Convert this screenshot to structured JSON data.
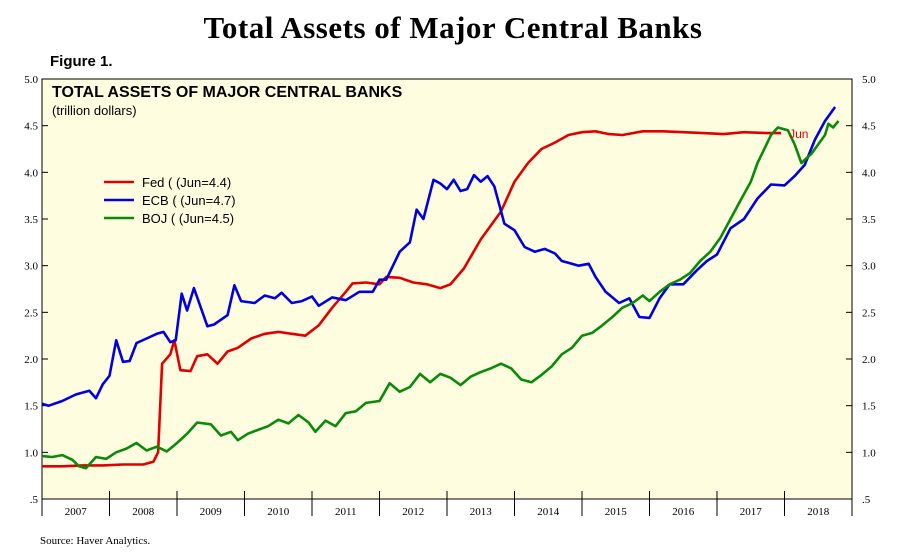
{
  "header": {
    "title": "Total Assets of Major Central Banks",
    "figure_label": "Figure 1.",
    "source": "Source: Haver Analytics."
  },
  "chart_data": {
    "type": "line",
    "title": "TOTAL ASSETS OF MAJOR CENTRAL BANKS",
    "subtitle": "(trillion dollars)",
    "xlabel": "",
    "ylabel": "",
    "xlim": [
      2007,
      2019
    ],
    "ylim": [
      0.5,
      5.0
    ],
    "yticks": [
      0.5,
      1.0,
      1.5,
      2.0,
      2.5,
      3.0,
      3.5,
      4.0,
      4.5,
      5.0
    ],
    "ytick_labels": [
      ".5",
      "1.0",
      "1.5",
      "2.0",
      "2.5",
      "3.0",
      "3.5",
      "4.0",
      "4.5",
      "5.0"
    ],
    "xtick_labels": [
      "2007",
      "2008",
      "2009",
      "2010",
      "2011",
      "2012",
      "2013",
      "2014",
      "2015",
      "2016",
      "2017",
      "2018"
    ],
    "background_color": "#fffde0",
    "grid": false,
    "legend_position": "upper-left",
    "annotation": {
      "text": "Jun",
      "color": "#dd0000"
    },
    "series": [
      {
        "name": "Fed ( (Jun=4.4)",
        "color": "#e00000",
        "points": [
          [
            2007.0,
            0.85
          ],
          [
            2007.3,
            0.85
          ],
          [
            2007.6,
            0.86
          ],
          [
            2007.9,
            0.86
          ],
          [
            2008.2,
            0.87
          ],
          [
            2008.5,
            0.87
          ],
          [
            2008.65,
            0.9
          ],
          [
            2008.72,
            1.0
          ],
          [
            2008.78,
            1.95
          ],
          [
            2008.9,
            2.05
          ],
          [
            2008.96,
            2.2
          ],
          [
            2009.05,
            1.88
          ],
          [
            2009.2,
            1.87
          ],
          [
            2009.3,
            2.03
          ],
          [
            2009.45,
            2.05
          ],
          [
            2009.6,
            1.95
          ],
          [
            2009.75,
            2.08
          ],
          [
            2009.9,
            2.12
          ],
          [
            2010.1,
            2.22
          ],
          [
            2010.3,
            2.27
          ],
          [
            2010.5,
            2.29
          ],
          [
            2010.7,
            2.27
          ],
          [
            2010.9,
            2.25
          ],
          [
            2011.1,
            2.36
          ],
          [
            2011.3,
            2.55
          ],
          [
            2011.5,
            2.72
          ],
          [
            2011.6,
            2.81
          ],
          [
            2011.8,
            2.82
          ],
          [
            2012.0,
            2.8
          ],
          [
            2012.1,
            2.88
          ],
          [
            2012.3,
            2.87
          ],
          [
            2012.5,
            2.82
          ],
          [
            2012.7,
            2.8
          ],
          [
            2012.9,
            2.76
          ],
          [
            2013.05,
            2.8
          ],
          [
            2013.25,
            2.97
          ],
          [
            2013.5,
            3.28
          ],
          [
            2013.8,
            3.58
          ],
          [
            2014.0,
            3.9
          ],
          [
            2014.2,
            4.1
          ],
          [
            2014.4,
            4.25
          ],
          [
            2014.6,
            4.32
          ],
          [
            2014.8,
            4.4
          ],
          [
            2015.0,
            4.43
          ],
          [
            2015.2,
            4.44
          ],
          [
            2015.4,
            4.41
          ],
          [
            2015.6,
            4.4
          ],
          [
            2015.9,
            4.44
          ],
          [
            2016.2,
            4.44
          ],
          [
            2016.5,
            4.43
          ],
          [
            2016.8,
            4.42
          ],
          [
            2017.1,
            4.41
          ],
          [
            2017.4,
            4.43
          ],
          [
            2017.75,
            4.42
          ],
          [
            2017.95,
            4.42
          ]
        ]
      },
      {
        "name": "ECB ( (Jun=4.7)",
        "color": "#0000e0",
        "points": [
          [
            2007.0,
            1.52
          ],
          [
            2007.1,
            1.5
          ],
          [
            2007.3,
            1.55
          ],
          [
            2007.5,
            1.62
          ],
          [
            2007.7,
            1.66
          ],
          [
            2007.8,
            1.58
          ],
          [
            2007.9,
            1.73
          ],
          [
            2008.0,
            1.82
          ],
          [
            2008.1,
            2.2
          ],
          [
            2008.2,
            1.97
          ],
          [
            2008.3,
            1.98
          ],
          [
            2008.4,
            2.17
          ],
          [
            2008.55,
            2.22
          ],
          [
            2008.7,
            2.27
          ],
          [
            2008.8,
            2.29
          ],
          [
            2008.9,
            2.18
          ],
          [
            2008.98,
            2.2
          ],
          [
            2009.07,
            2.7
          ],
          [
            2009.15,
            2.52
          ],
          [
            2009.25,
            2.76
          ],
          [
            2009.45,
            2.35
          ],
          [
            2009.55,
            2.37
          ],
          [
            2009.75,
            2.47
          ],
          [
            2009.85,
            2.79
          ],
          [
            2009.95,
            2.62
          ],
          [
            2010.15,
            2.6
          ],
          [
            2010.3,
            2.68
          ],
          [
            2010.45,
            2.65
          ],
          [
            2010.55,
            2.71
          ],
          [
            2010.7,
            2.6
          ],
          [
            2010.85,
            2.62
          ],
          [
            2011.0,
            2.67
          ],
          [
            2011.1,
            2.57
          ],
          [
            2011.3,
            2.66
          ],
          [
            2011.5,
            2.63
          ],
          [
            2011.7,
            2.72
          ],
          [
            2011.9,
            2.72
          ],
          [
            2012.0,
            2.85
          ],
          [
            2012.1,
            2.85
          ],
          [
            2012.3,
            3.15
          ],
          [
            2012.45,
            3.25
          ],
          [
            2012.55,
            3.6
          ],
          [
            2012.65,
            3.5
          ],
          [
            2012.8,
            3.92
          ],
          [
            2012.9,
            3.88
          ],
          [
            2013.0,
            3.82
          ],
          [
            2013.1,
            3.92
          ],
          [
            2013.2,
            3.8
          ],
          [
            2013.3,
            3.82
          ],
          [
            2013.4,
            3.97
          ],
          [
            2013.5,
            3.9
          ],
          [
            2013.6,
            3.96
          ],
          [
            2013.7,
            3.85
          ],
          [
            2013.85,
            3.45
          ],
          [
            2014.0,
            3.38
          ],
          [
            2014.15,
            3.2
          ],
          [
            2014.3,
            3.15
          ],
          [
            2014.45,
            3.18
          ],
          [
            2014.6,
            3.13
          ],
          [
            2014.7,
            3.05
          ],
          [
            2014.85,
            3.02
          ],
          [
            2014.95,
            3.0
          ],
          [
            2015.1,
            3.02
          ],
          [
            2015.2,
            2.88
          ],
          [
            2015.35,
            2.72
          ],
          [
            2015.55,
            2.6
          ],
          [
            2015.7,
            2.65
          ],
          [
            2015.85,
            2.45
          ],
          [
            2016.0,
            2.44
          ],
          [
            2016.15,
            2.65
          ],
          [
            2016.3,
            2.8
          ],
          [
            2016.5,
            2.8
          ],
          [
            2016.7,
            2.95
          ],
          [
            2016.85,
            3.05
          ],
          [
            2017.0,
            3.12
          ],
          [
            2017.2,
            3.4
          ],
          [
            2017.4,
            3.5
          ],
          [
            2017.6,
            3.72
          ],
          [
            2017.8,
            3.87
          ],
          [
            2018.0,
            3.86
          ],
          [
            2018.15,
            3.96
          ],
          [
            2018.3,
            4.08
          ],
          [
            2018.45,
            4.35
          ],
          [
            2018.6,
            4.55
          ],
          [
            2018.75,
            4.7
          ]
        ]
      },
      {
        "name": "BOJ ( (Jun=4.5)",
        "color": "#0a8a0a",
        "points": [
          [
            2007.0,
            0.96
          ],
          [
            2007.15,
            0.95
          ],
          [
            2007.3,
            0.97
          ],
          [
            2007.45,
            0.92
          ],
          [
            2007.55,
            0.85
          ],
          [
            2007.65,
            0.83
          ],
          [
            2007.8,
            0.95
          ],
          [
            2007.95,
            0.93
          ],
          [
            2008.1,
            1.0
          ],
          [
            2008.25,
            1.04
          ],
          [
            2008.4,
            1.1
          ],
          [
            2008.55,
            1.02
          ],
          [
            2008.7,
            1.06
          ],
          [
            2008.85,
            1.01
          ],
          [
            2009.0,
            1.1
          ],
          [
            2009.15,
            1.2
          ],
          [
            2009.3,
            1.32
          ],
          [
            2009.5,
            1.3
          ],
          [
            2009.65,
            1.18
          ],
          [
            2009.8,
            1.22
          ],
          [
            2009.9,
            1.13
          ],
          [
            2010.05,
            1.2
          ],
          [
            2010.2,
            1.24
          ],
          [
            2010.35,
            1.28
          ],
          [
            2010.5,
            1.35
          ],
          [
            2010.65,
            1.31
          ],
          [
            2010.8,
            1.4
          ],
          [
            2010.95,
            1.32
          ],
          [
            2011.05,
            1.22
          ],
          [
            2011.2,
            1.34
          ],
          [
            2011.35,
            1.28
          ],
          [
            2011.5,
            1.42
          ],
          [
            2011.65,
            1.44
          ],
          [
            2011.8,
            1.53
          ],
          [
            2012.0,
            1.55
          ],
          [
            2012.15,
            1.74
          ],
          [
            2012.3,
            1.65
          ],
          [
            2012.45,
            1.7
          ],
          [
            2012.6,
            1.84
          ],
          [
            2012.75,
            1.75
          ],
          [
            2012.9,
            1.84
          ],
          [
            2013.05,
            1.8
          ],
          [
            2013.2,
            1.72
          ],
          [
            2013.35,
            1.81
          ],
          [
            2013.5,
            1.86
          ],
          [
            2013.65,
            1.9
          ],
          [
            2013.8,
            1.95
          ],
          [
            2013.95,
            1.9
          ],
          [
            2014.1,
            1.78
          ],
          [
            2014.25,
            1.75
          ],
          [
            2014.4,
            1.83
          ],
          [
            2014.55,
            1.92
          ],
          [
            2014.7,
            2.05
          ],
          [
            2014.85,
            2.12
          ],
          [
            2015.0,
            2.25
          ],
          [
            2015.15,
            2.28
          ],
          [
            2015.3,
            2.36
          ],
          [
            2015.45,
            2.45
          ],
          [
            2015.6,
            2.55
          ],
          [
            2015.75,
            2.6
          ],
          [
            2015.9,
            2.68
          ],
          [
            2016.0,
            2.62
          ],
          [
            2016.15,
            2.72
          ],
          [
            2016.3,
            2.8
          ],
          [
            2016.45,
            2.85
          ],
          [
            2016.6,
            2.92
          ],
          [
            2016.75,
            3.05
          ],
          [
            2016.9,
            3.15
          ],
          [
            2017.05,
            3.3
          ],
          [
            2017.2,
            3.5
          ],
          [
            2017.35,
            3.7
          ],
          [
            2017.5,
            3.9
          ],
          [
            2017.6,
            4.1
          ],
          [
            2017.7,
            4.25
          ],
          [
            2017.8,
            4.4
          ],
          [
            2017.9,
            4.48
          ],
          [
            2018.05,
            4.45
          ],
          [
            2018.15,
            4.3
          ],
          [
            2018.25,
            4.1
          ],
          [
            2018.4,
            4.2
          ],
          [
            2018.5,
            4.3
          ],
          [
            2018.6,
            4.4
          ],
          [
            2018.65,
            4.52
          ],
          [
            2018.72,
            4.48
          ],
          [
            2018.8,
            4.55
          ]
        ]
      }
    ]
  }
}
